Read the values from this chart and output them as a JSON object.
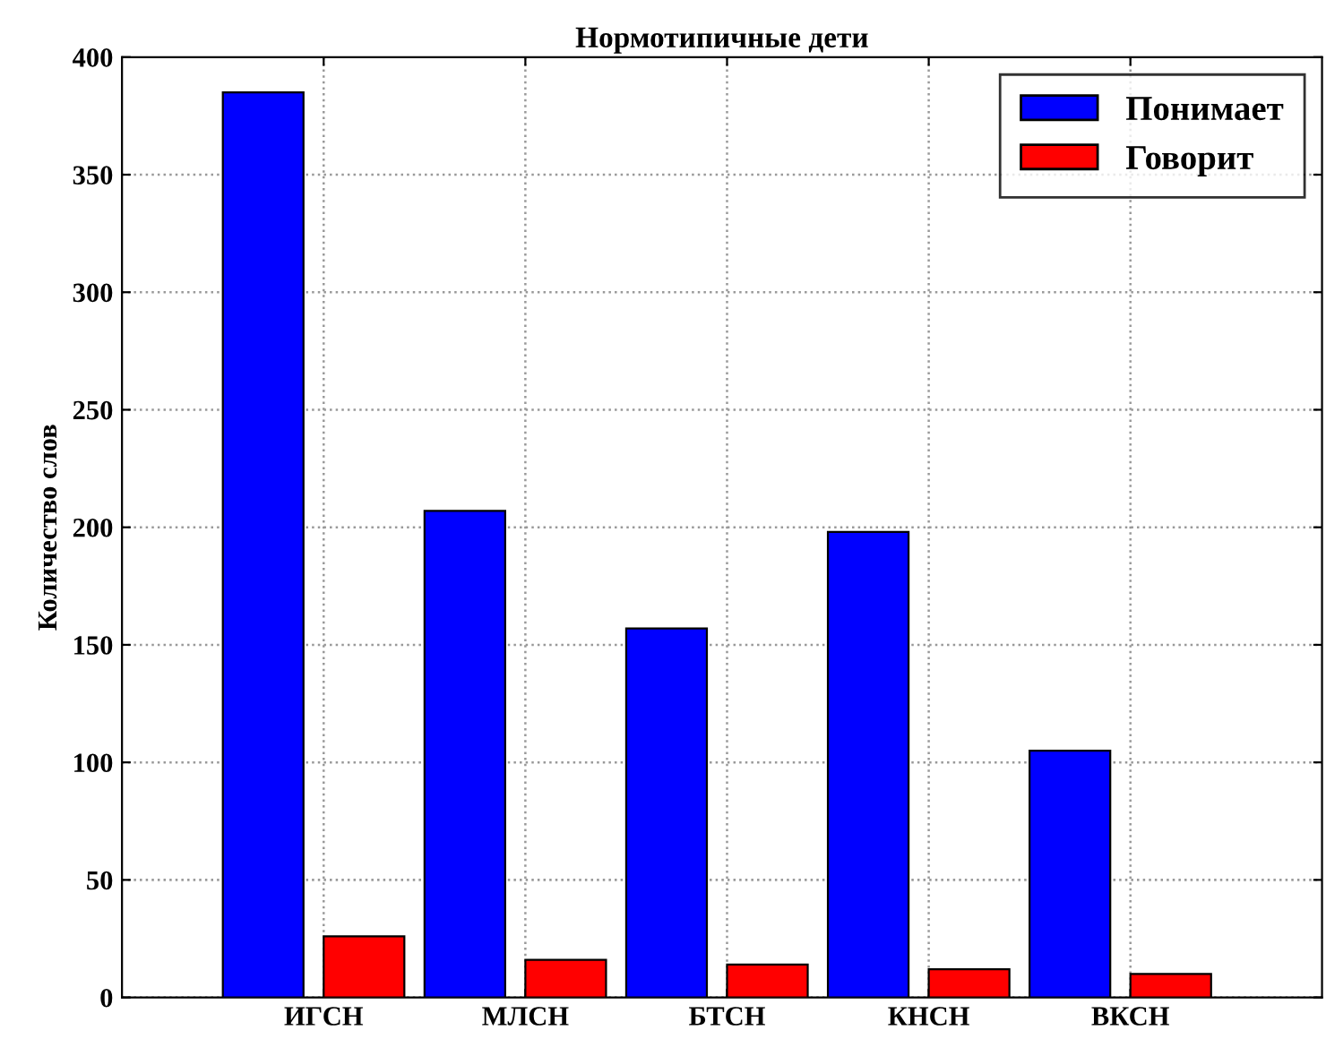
{
  "chart_data": {
    "type": "bar",
    "title": "Нормотипичные дети",
    "ylabel": "Количество слов",
    "categories": [
      "ИГСН",
      "МЛСН",
      "БТСН",
      "КНСН",
      "ВКСН"
    ],
    "series": [
      {
        "name": "Понимает",
        "color": "#0000ff",
        "values": [
          385,
          207,
          157,
          198,
          105
        ]
      },
      {
        "name": "Говорит",
        "color": "#ff0000",
        "values": [
          26,
          16,
          14,
          12,
          10
        ]
      }
    ],
    "ylim": [
      0,
      400
    ],
    "yticks": [
      0,
      50,
      100,
      150,
      200,
      250,
      300,
      350,
      400
    ],
    "grid": true,
    "legend": "top right"
  }
}
